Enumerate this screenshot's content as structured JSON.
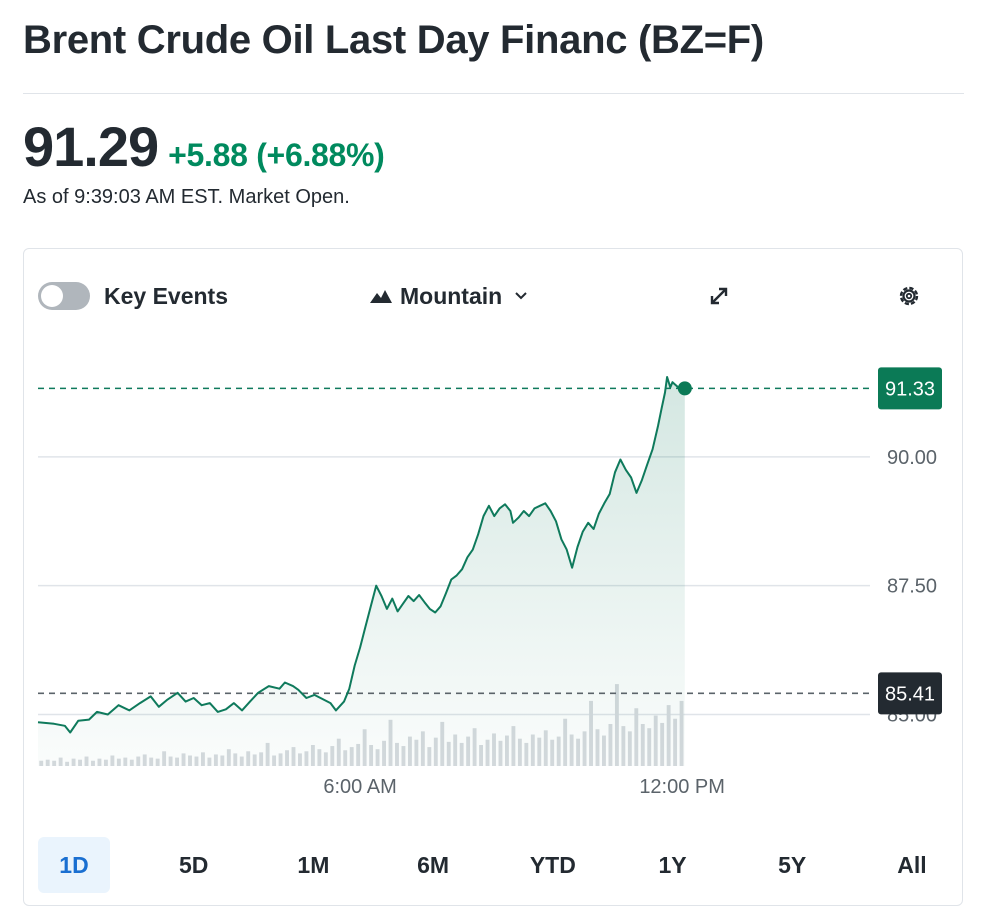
{
  "header": {
    "title": "Brent Crude Oil Last Day Financ (BZ=F)",
    "price": "91.29",
    "change": "+5.88 (+6.88%)",
    "as_of": "As of 9:39:03 AM EST. Market Open."
  },
  "controls": {
    "key_events_label": "Key Events",
    "chart_type_label": "Mountain",
    "expand_icon": "expand-icon",
    "settings_icon": "gear-icon"
  },
  "colors": {
    "line": "#0f7a5c",
    "positive": "#008a5e",
    "current_tag": "#0b7a56",
    "prev_close_tag": "#232a31",
    "volume": "#d6dade",
    "active_range_bg": "#eaf4fd",
    "active_range_text": "#1a6fd1"
  },
  "chart_data": {
    "type": "area",
    "title": "Brent Crude Oil Last Day Financ (BZ=F)",
    "xlabel": "",
    "ylabel": "",
    "x_ticks": [
      {
        "label": "6:00 AM",
        "hour": 6
      },
      {
        "label": "12:00 PM",
        "hour": 12
      }
    ],
    "x_range_hours": [
      0,
      15.5
    ],
    "ylim": [
      84.0,
      91.9
    ],
    "y_ticks": [
      {
        "label": "90.00",
        "value": 90.0
      },
      {
        "label": "87.50",
        "value": 87.5
      },
      {
        "label": "85.00",
        "value": 85.0
      }
    ],
    "reference_lines": [
      {
        "name": "current",
        "label": "91.33",
        "value": 91.33
      },
      {
        "name": "previous-close",
        "label": "85.41",
        "value": 85.41
      }
    ],
    "series": [
      {
        "name": "BZ=F price",
        "points": [
          [
            0.0,
            84.85
          ],
          [
            0.3,
            84.82
          ],
          [
            0.5,
            84.78
          ],
          [
            0.6,
            84.65
          ],
          [
            0.75,
            84.88
          ],
          [
            0.95,
            84.9
          ],
          [
            1.1,
            85.05
          ],
          [
            1.3,
            85.0
          ],
          [
            1.5,
            85.18
          ],
          [
            1.7,
            85.08
          ],
          [
            1.9,
            85.22
          ],
          [
            2.1,
            85.35
          ],
          [
            2.25,
            85.15
          ],
          [
            2.4,
            85.28
          ],
          [
            2.6,
            85.42
          ],
          [
            2.75,
            85.25
          ],
          [
            2.9,
            85.32
          ],
          [
            3.05,
            85.18
          ],
          [
            3.2,
            85.22
          ],
          [
            3.35,
            85.05
          ],
          [
            3.5,
            85.1
          ],
          [
            3.65,
            85.22
          ],
          [
            3.8,
            85.08
          ],
          [
            3.95,
            85.25
          ],
          [
            4.1,
            85.42
          ],
          [
            4.3,
            85.55
          ],
          [
            4.5,
            85.5
          ],
          [
            4.6,
            85.62
          ],
          [
            4.75,
            85.55
          ],
          [
            4.85,
            85.48
          ],
          [
            5.0,
            85.32
          ],
          [
            5.15,
            85.38
          ],
          [
            5.3,
            85.3
          ],
          [
            5.45,
            85.22
          ],
          [
            5.55,
            85.08
          ],
          [
            5.7,
            85.25
          ],
          [
            5.8,
            85.5
          ],
          [
            5.9,
            85.95
          ],
          [
            6.0,
            86.3
          ],
          [
            6.1,
            86.7
          ],
          [
            6.2,
            87.1
          ],
          [
            6.3,
            87.5
          ],
          [
            6.4,
            87.3
          ],
          [
            6.5,
            87.05
          ],
          [
            6.6,
            87.25
          ],
          [
            6.7,
            87.0
          ],
          [
            6.8,
            87.15
          ],
          [
            6.9,
            87.3
          ],
          [
            7.0,
            87.2
          ],
          [
            7.1,
            87.32
          ],
          [
            7.2,
            87.18
          ],
          [
            7.3,
            87.05
          ],
          [
            7.4,
            86.98
          ],
          [
            7.5,
            87.1
          ],
          [
            7.6,
            87.35
          ],
          [
            7.7,
            87.62
          ],
          [
            7.8,
            87.7
          ],
          [
            7.9,
            87.82
          ],
          [
            8.0,
            88.05
          ],
          [
            8.1,
            88.2
          ],
          [
            8.2,
            88.5
          ],
          [
            8.3,
            88.85
          ],
          [
            8.4,
            89.05
          ],
          [
            8.5,
            88.85
          ],
          [
            8.6,
            89.0
          ],
          [
            8.7,
            89.08
          ],
          [
            8.8,
            88.95
          ],
          [
            8.85,
            88.72
          ],
          [
            8.95,
            88.82
          ],
          [
            9.05,
            88.95
          ],
          [
            9.15,
            88.85
          ],
          [
            9.25,
            89.0
          ],
          [
            9.35,
            89.05
          ],
          [
            9.45,
            89.1
          ],
          [
            9.55,
            88.95
          ],
          [
            9.65,
            88.75
          ],
          [
            9.75,
            88.4
          ],
          [
            9.85,
            88.2
          ],
          [
            9.95,
            87.85
          ],
          [
            10.05,
            88.25
          ],
          [
            10.15,
            88.55
          ],
          [
            10.25,
            88.72
          ],
          [
            10.35,
            88.6
          ],
          [
            10.45,
            88.9
          ],
          [
            10.55,
            89.1
          ],
          [
            10.65,
            89.28
          ],
          [
            10.75,
            89.7
          ],
          [
            10.85,
            89.95
          ],
          [
            10.95,
            89.75
          ],
          [
            11.05,
            89.6
          ],
          [
            11.15,
            89.3
          ],
          [
            11.25,
            89.55
          ],
          [
            11.35,
            89.85
          ],
          [
            11.45,
            90.15
          ],
          [
            11.55,
            90.6
          ],
          [
            11.62,
            90.95
          ],
          [
            11.68,
            91.25
          ],
          [
            11.72,
            91.55
          ],
          [
            11.78,
            91.35
          ],
          [
            11.82,
            91.45
          ],
          [
            11.95,
            91.33
          ],
          [
            12.05,
            91.33
          ]
        ]
      }
    ],
    "volume": [
      0.05,
      0.06,
      0.05,
      0.08,
      0.04,
      0.07,
      0.06,
      0.09,
      0.05,
      0.07,
      0.06,
      0.1,
      0.07,
      0.08,
      0.06,
      0.09,
      0.11,
      0.08,
      0.07,
      0.14,
      0.09,
      0.08,
      0.12,
      0.1,
      0.09,
      0.13,
      0.08,
      0.11,
      0.1,
      0.16,
      0.12,
      0.09,
      0.14,
      0.11,
      0.13,
      0.22,
      0.1,
      0.12,
      0.15,
      0.18,
      0.12,
      0.14,
      0.2,
      0.16,
      0.13,
      0.19,
      0.26,
      0.15,
      0.18,
      0.21,
      0.35,
      0.2,
      0.16,
      0.24,
      0.44,
      0.22,
      0.19,
      0.28,
      0.25,
      0.33,
      0.18,
      0.27,
      0.42,
      0.23,
      0.3,
      0.22,
      0.28,
      0.36,
      0.2,
      0.25,
      0.31,
      0.24,
      0.29,
      0.38,
      0.26,
      0.22,
      0.3,
      0.27,
      0.34,
      0.25,
      0.28,
      0.45,
      0.3,
      0.26,
      0.33,
      0.62,
      0.35,
      0.29,
      0.4,
      0.78,
      0.38,
      0.33,
      0.55,
      0.4,
      0.36,
      0.48,
      0.41,
      0.58,
      0.45,
      0.62
    ]
  },
  "ranges": {
    "active": "1D",
    "items": [
      "1D",
      "5D",
      "1M",
      "6M",
      "YTD",
      "1Y",
      "5Y",
      "All"
    ]
  }
}
